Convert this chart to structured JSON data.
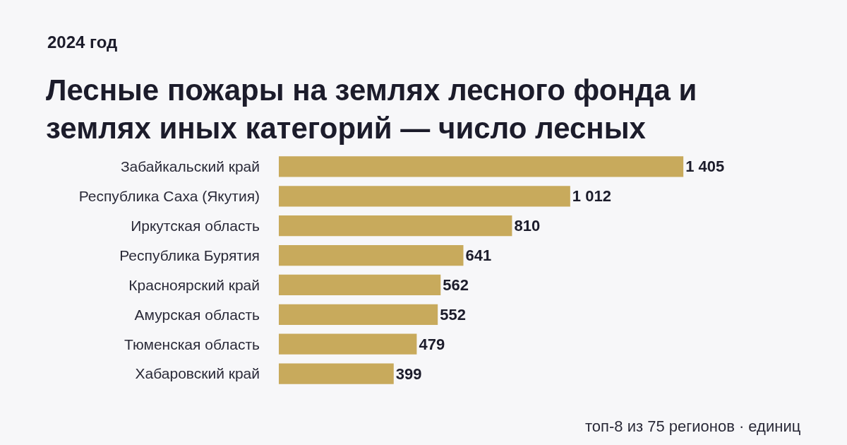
{
  "chart_data": {
    "type": "bar",
    "orientation": "horizontal",
    "title": "Лесные пожары на землях лесного фонда и землях иных категорий — число лесных",
    "subtitle": "2024 год",
    "categories": [
      "Забайкальский край",
      "Республика Саха (Якутия)",
      "Иркутская область",
      "Республика Бурятия",
      "Красноярский край",
      "Амурская область",
      "Тюменская область",
      "Хабаровский край"
    ],
    "values": [
      1405,
      1012,
      810,
      641,
      562,
      552,
      479,
      399
    ],
    "value_labels": [
      "1 405",
      "1 012",
      "810",
      "641",
      "562",
      "552",
      "479",
      "399"
    ],
    "color": "#c8aa5c",
    "annotations": [
      "топ-8 из 75 регионов · единиц"
    ],
    "legend": false
  }
}
